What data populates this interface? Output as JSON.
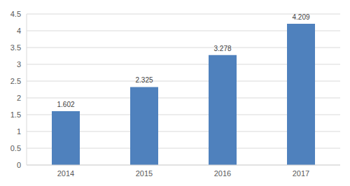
{
  "chart_data": {
    "type": "bar",
    "categories": [
      "2014",
      "2015",
      "2016",
      "2017"
    ],
    "values": [
      1.602,
      2.325,
      3.278,
      4.209
    ],
    "color": "#4f81bd",
    "ylim": [
      0,
      4.5
    ],
    "yticks": [
      0,
      0.5,
      1,
      1.5,
      2,
      2.5,
      3,
      3.5,
      4,
      4.5
    ],
    "grid": true,
    "data_labels": true
  }
}
